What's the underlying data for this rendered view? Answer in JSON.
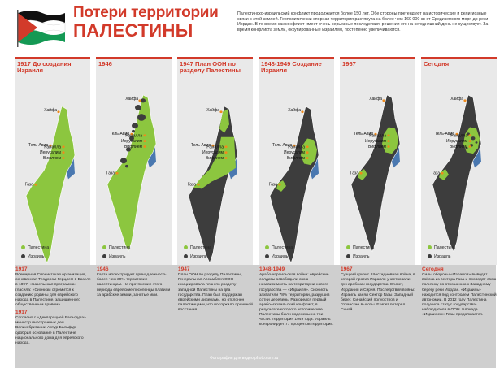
{
  "title": {
    "line1": "Потери территории",
    "line2": "ПАЛЕСТИНЫ"
  },
  "intro": "Палестинско-израильский конфликт продолжается более 150 лет. Обе стороны претендуют на исторические и религиозные связи с этой землей. Геополитически спорная территория растянута на более чем 160 000 кв от Средиземного моря до реки Иордан. В то время как конфликт имеет очень серьезные последствия, решения его на сегодняшний день не существует. За время конфликта земли, оккупированные Израилем, постепенно увеличиваются.",
  "colors": {
    "palestine": "#8cc63f",
    "israel": "#3d3d3d",
    "accent": "#d23a2a",
    "sea": "#4a78b0",
    "city": "#f08a1c"
  },
  "cities": {
    "haifa": "Хайфа",
    "telaviv": "Тель-Авив",
    "ramallah": "Рамалла",
    "jerusalem": "Иерусалим",
    "bethlehem": "Вифлием",
    "gaza": "Газа"
  },
  "legend": {
    "palestine": "Палестина",
    "israel": "Израиль"
  },
  "panels": [
    {
      "title": "1917 До создания Израиля",
      "year": "1917",
      "text": "Всемирная Сионистская организация, основанная Теодором Герцлем в Базеле в 1897, «Базельская программа» гласила: «Сионизм стремится к созданию родины для еврейского народа в Палестине, защищенного общественным правом».",
      "year2": "1917",
      "text2": "Согласно с «Декларацией Бальфура» министр иностранных дел Великобритании Артур Бальфур одобрил основание в Палестине национального дома для еврейского народа."
    },
    {
      "title": "1946",
      "year": "1946",
      "text": "Карта иллюстрирует принадлежность более чем 30% территории палестинцам. На протяжении этого периода еврейские поселенцы платили за арабские земли, занятые ими."
    },
    {
      "title": "1947 План ООН по разделу Палестины",
      "year": "1947",
      "text": "План ООН по разделу Палестины, Генеральная Ассамблея ООН инициировала план по разделу западной Палестины на два государства. План был поддержан еврейскими лидерами, но отклонен палестинцами, что послужило причиной восстания."
    },
    {
      "title": "1948-1949 Создание Израиля",
      "year": "1948-1949",
      "text": "Арабо-израильская война: еврейские солдаты освободили свою независимость на территории нового государства — «Израиля». Сионисты захватили 78% территории, разрушив сотни деревень. Разгорелся первый арабо-израильский конфликт, в результате которого исторические Палестины были поделены на три части. Территория 1949 года: Израиль контролирует 77 процентов территории."
    },
    {
      "title": "1967",
      "year": "1967",
      "text": "Суэцкий кризис. Шестидневная война, в которой против Израиля участвовали три арабских государства: Египет, Иордания и Сирия. Последствия войны: Израиль занял Сектор Газы, Западный берег, Синайский полуостров и Голанские высоты. Египет потерял Синай."
    },
    {
      "title": "Сегодня",
      "year": "Сегодня",
      "text": "Силы обороны «Израиля» выводят войска из сектора Газа и проводят свою политику по отношению к Западному берегу реки Иордан. «Израиль» находится под контролем Палестинской автономии. В 2012 году Палестина получила статус государства-наблюдателя в ООН. Блокада «Израилем» Газы продолжается."
    }
  ],
  "footer": "Фотография для видео photo.com.ru"
}
